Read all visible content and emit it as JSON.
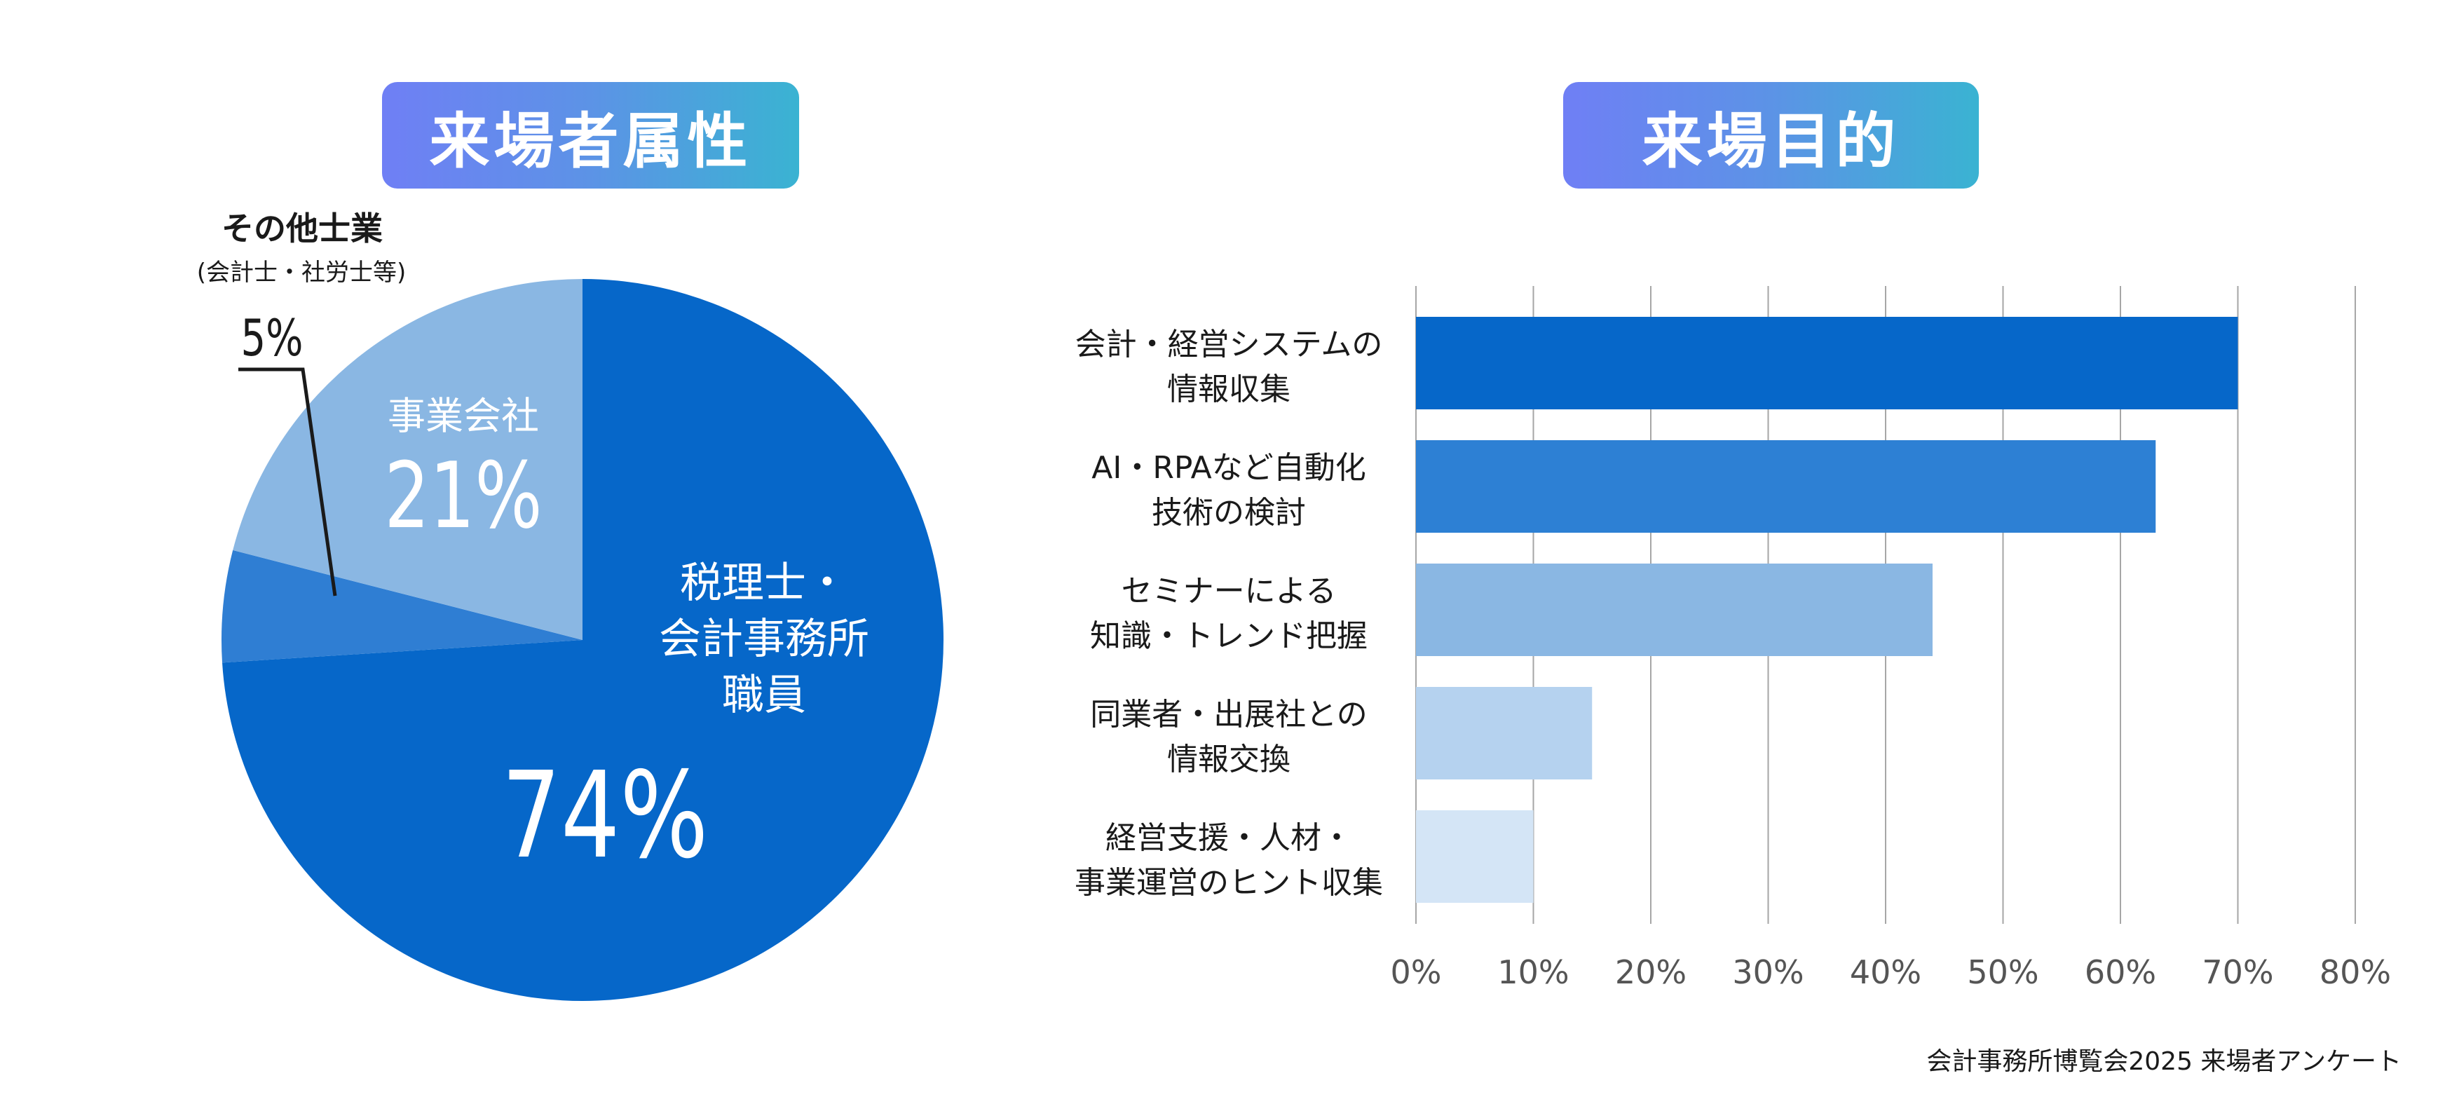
{
  "pie_title": "来場者属性",
  "bar_title": "来場目的",
  "source_note": "会計事務所博覧会2025 来場者アンケート",
  "chart_data": [
    {
      "type": "pie",
      "slices": [
        {
          "label": "税理士・会計事務所職員",
          "label_lines": [
            "税理士・",
            "会計事務所",
            "職員"
          ],
          "value": 74,
          "value_label": "74%",
          "color": "#0667c9"
        },
        {
          "label": "その他士業(会計士・社労士等)",
          "label_lines": [
            "その他士業",
            "(会計士・社労士等)"
          ],
          "value": 5,
          "value_label": "5%",
          "color": "#2f7ed3"
        },
        {
          "label": "事業会社",
          "label_lines": [
            "事業会社"
          ],
          "value": 21,
          "value_label": "21%",
          "color": "#8ab7e3"
        }
      ]
    },
    {
      "type": "bar",
      "orientation": "horizontal",
      "categories": [
        [
          "会計・経営システムの",
          "情報収集"
        ],
        [
          "AI・RPAなど自動化",
          "技術の検討"
        ],
        [
          "セミナーによる",
          "知識・トレンド把握"
        ],
        [
          "同業者・出展社との",
          "情報交換"
        ],
        [
          "経営支援・人材・",
          "事業運営のヒント収集"
        ]
      ],
      "values": [
        70,
        63,
        44,
        15,
        10
      ],
      "bar_colors": [
        "#0667c9",
        "#2d80d4",
        "#8ab7e3",
        "#b5d2ef",
        "#d4e5f6"
      ],
      "xlim": [
        0,
        80
      ],
      "xticks": [
        "0%",
        "10%",
        "20%",
        "30%",
        "40%",
        "50%",
        "60%",
        "70%",
        "80%"
      ],
      "grid": true,
      "grid_color": "#a6a6a6"
    }
  ]
}
